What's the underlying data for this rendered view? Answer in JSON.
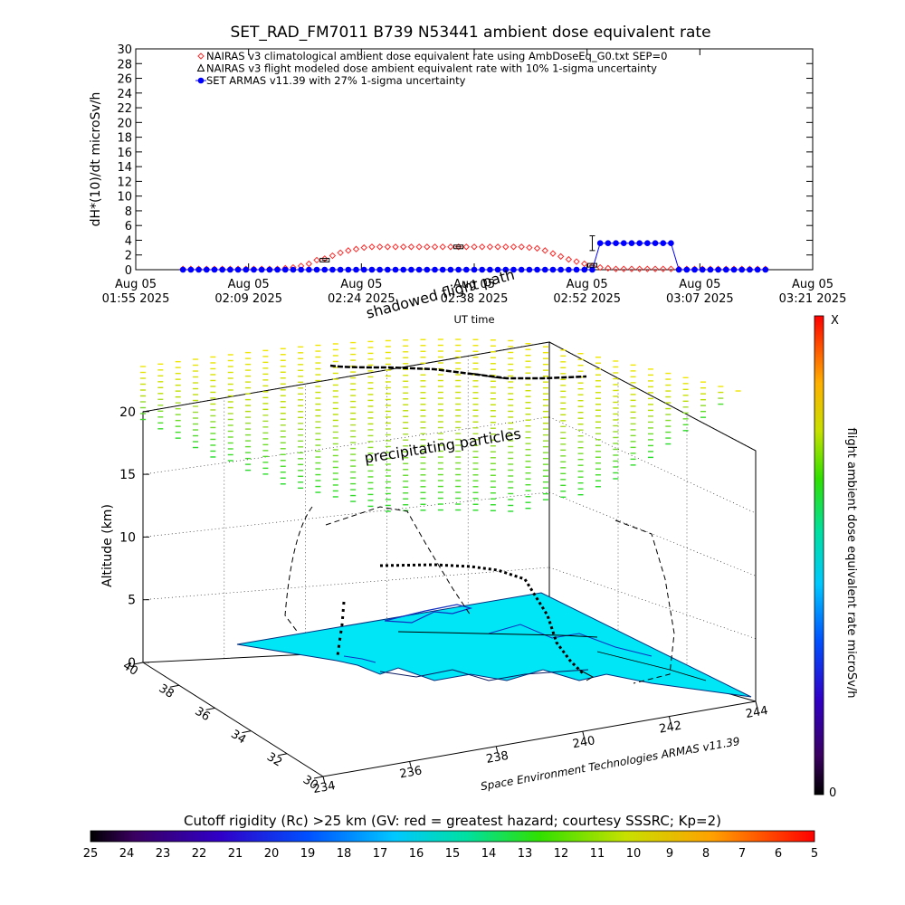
{
  "title": "SET_RAD_FM7011   B739 N53441 ambient dose equivalent rate",
  "chart_data": [
    {
      "type": "scatter",
      "title": "SET_RAD_FM7011   B739 N53441 ambient dose equivalent rate",
      "ylabel": "dH*(10)/dt microSv/h",
      "xlabel": "UT time",
      "ylim": [
        0,
        30
      ],
      "yticks": [
        "0",
        "2",
        "4",
        "6",
        "8",
        "10",
        "12",
        "14",
        "16",
        "18",
        "20",
        "22",
        "24",
        "26",
        "28",
        "30"
      ],
      "xticks": [
        {
          "date": "Aug 05",
          "time": "01:55 2025"
        },
        {
          "date": "Aug 05",
          "time": "02:09 2025"
        },
        {
          "date": "Aug 05",
          "time": "02:24 2025"
        },
        {
          "date": "Aug 05",
          "time": "02:38 2025"
        },
        {
          "date": "Aug 05",
          "time": "02:52 2025"
        },
        {
          "date": "Aug 05",
          "time": "03:07 2025"
        },
        {
          "date": "Aug 05",
          "time": "03:21 2025"
        }
      ],
      "xlim_minutes": [
        0,
        86
      ],
      "legend": [
        "NAIRAS v3 climatological ambient dose equivalent rate using AmbDoseEq_G0.txt SEP=0",
        "NAIRAS v3 flight modeled dose ambient equivalent rate with 10% 1-sigma uncertainty",
        "SET ARMAS v11.39 with 27% 1-sigma uncertainty"
      ],
      "series": [
        {
          "name": "NAIRAS v3 climatological ambient dose equivalent rate using AmbDoseEq_G0.txt SEP=0",
          "color": "#ff2a2a",
          "marker": "diamond",
          "x": [
            6,
            7,
            8,
            9,
            10,
            11,
            12,
            13,
            14,
            15,
            16,
            17,
            18,
            19,
            20,
            21,
            22,
            23,
            24,
            25,
            26,
            27,
            28,
            29,
            30,
            31,
            32,
            33,
            34,
            35,
            36,
            37,
            38,
            39,
            40,
            41,
            42,
            43,
            44,
            45,
            46,
            47,
            48,
            49,
            50,
            51,
            52,
            53,
            54,
            55,
            56,
            57,
            58,
            59,
            60,
            61,
            62,
            63,
            64,
            65,
            66,
            67,
            68,
            69,
            70,
            71,
            72,
            73,
            74,
            75,
            76,
            77,
            78,
            79,
            80
          ],
          "y": [
            0.1,
            0.1,
            0.1,
            0.1,
            0.1,
            0.1,
            0.1,
            0.1,
            0.1,
            0.1,
            0.1,
            0.1,
            0.1,
            0.2,
            0.3,
            0.5,
            0.8,
            1.3,
            1.5,
            1.9,
            2.3,
            2.6,
            2.8,
            3.0,
            3.1,
            3.1,
            3.1,
            3.1,
            3.1,
            3.1,
            3.1,
            3.1,
            3.1,
            3.1,
            3.1,
            3.1,
            3.1,
            3.1,
            3.1,
            3.1,
            3.1,
            3.1,
            3.1,
            3.1,
            3.0,
            2.9,
            2.6,
            2.2,
            1.8,
            1.4,
            1.1,
            0.8,
            0.5,
            0.3,
            0.2,
            0.1,
            0.1,
            0.1,
            0.1,
            0.1,
            0.1,
            0.1,
            0.1,
            0.1,
            0.1,
            0.1,
            0.1,
            0.1,
            0.1,
            0.1,
            0.1,
            0.1,
            0.1,
            0.1,
            0.1
          ]
        },
        {
          "name": "NAIRAS v3 flight modeled dose ambient equivalent rate with 10% 1-sigma uncertainty",
          "color": "#000000",
          "marker": "triangle",
          "x": [
            24,
            41,
            58
          ],
          "y": [
            1.3,
            3.1,
            0.6
          ]
        },
        {
          "name": "SET ARMAS v11.39 with 27% 1-sigma uncertainty",
          "color": "#0000ff",
          "marker": "circle",
          "x": [
            6,
            7,
            8,
            9,
            10,
            11,
            12,
            13,
            14,
            15,
            16,
            17,
            18,
            19,
            20,
            21,
            22,
            23,
            24,
            25,
            26,
            27,
            28,
            29,
            30,
            31,
            32,
            33,
            34,
            35,
            36,
            37,
            38,
            39,
            40,
            41,
            42,
            43,
            44,
            45,
            46,
            47,
            48,
            49,
            50,
            51,
            52,
            53,
            54,
            55,
            56,
            57,
            58,
            59,
            60,
            61,
            62,
            63,
            64,
            65,
            66,
            67,
            68,
            69,
            70,
            71,
            72,
            73,
            74,
            75,
            76,
            77,
            78,
            79,
            80
          ],
          "y": [
            0,
            0,
            0,
            0,
            0,
            0,
            0,
            0,
            0,
            0,
            0,
            0,
            0,
            0,
            0,
            0,
            0,
            0,
            0,
            0,
            0,
            0,
            0,
            0,
            0,
            0,
            0,
            0,
            0,
            0,
            0,
            0,
            0,
            0,
            0,
            0,
            0,
            0,
            0,
            0,
            0,
            0,
            0,
            0,
            0,
            0,
            0,
            0,
            0,
            0,
            0,
            0,
            0,
            3.6,
            3.6,
            3.6,
            3.6,
            3.6,
            3.6,
            3.6,
            3.6,
            3.6,
            3.6,
            0,
            0,
            0,
            0,
            0,
            0,
            0,
            0,
            0,
            0,
            0,
            0
          ],
          "error_bar": {
            "x": 58,
            "y": 3.6,
            "sigma": 1.0
          }
        }
      ]
    },
    {
      "type": "scatter",
      "zlabel": "Altitude (km)",
      "zticks": [
        "0",
        "5",
        "10",
        "15",
        "20"
      ],
      "latitude_ticks": [
        "30",
        "32",
        "34",
        "36",
        "38",
        "40"
      ],
      "longitude_ticks": [
        "234",
        "236",
        "238",
        "240",
        "242",
        "244"
      ],
      "annotations": [
        "precipitating particles",
        "shadowed flight path",
        "Space Environment Technologies ARMAS v11.39"
      ],
      "right_colorbar_label": "flight ambient dose equivalent rate microSv/h",
      "right_colorbar_range": [
        "0",
        "X"
      ],
      "bottom_colorbar_label": "Cutoff rigidity (Rc) >25 km (GV: red = greatest hazard; courtesy SSSRC; Kp=2)",
      "bottom_colorbar_ticks": [
        "25",
        "24",
        "23",
        "22",
        "21",
        "20",
        "19",
        "18",
        "17",
        "16",
        "15",
        "14",
        "13",
        "12",
        "11",
        "10",
        "9",
        "8",
        "7",
        "6",
        "5"
      ]
    }
  ]
}
